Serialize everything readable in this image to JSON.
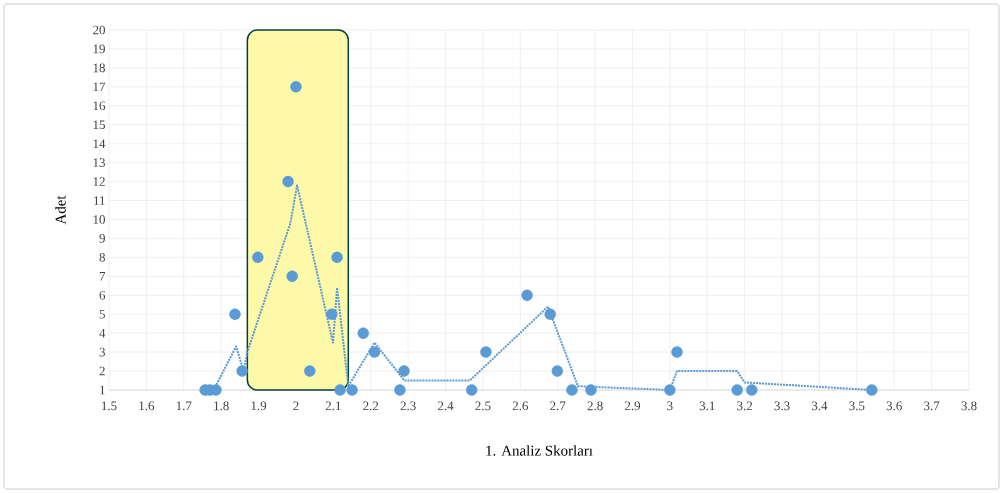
{
  "chart_data": {
    "type": "scatter",
    "xlabel": "1. Analiz Skorları",
    "ylabel": "Adet",
    "xlim": [
      1.5,
      3.8
    ],
    "xticks": [
      1.5,
      1.6,
      1.7,
      1.8,
      1.9,
      2,
      2.1,
      2.2,
      2.3,
      2.4,
      2.5,
      2.6,
      2.7,
      2.8,
      2.9,
      3,
      3.1,
      3.2,
      3.3,
      3.4,
      3.5,
      3.6,
      3.7,
      3.8
    ],
    "ylim": [
      1,
      20
    ],
    "yticks": [
      1,
      2,
      3,
      4,
      5,
      6,
      7,
      8,
      9,
      10,
      11,
      12,
      13,
      14,
      15,
      16,
      17,
      18,
      19,
      20
    ],
    "grid": true,
    "marker": "circle",
    "bands": [
      {
        "axis": "x",
        "from": 1.87,
        "to": 2.14,
        "color": "#fdf9a8"
      }
    ],
    "series": [
      {
        "color": "#5b9bd5",
        "x": [
          1.757,
          1.77,
          1.786,
          1.837,
          1.856,
          1.898,
          1.979,
          1.99,
          2.0,
          2.037,
          2.096,
          2.11,
          2.118,
          2.15,
          2.18,
          2.21,
          2.278,
          2.289,
          2.47,
          2.508,
          2.618,
          2.68,
          2.699,
          2.738,
          2.789,
          3.0,
          3.019,
          3.18,
          3.219,
          3.54
        ],
        "values": [
          1,
          1,
          1,
          5,
          2,
          8,
          12,
          7,
          17,
          2,
          5,
          8,
          1,
          1,
          4,
          3,
          1,
          2,
          1,
          3,
          6,
          5,
          2,
          1,
          1,
          1,
          3,
          1,
          1,
          1
        ]
      },
      {
        "type": "line",
        "color": "#5b9bd5",
        "line_style": "dotted",
        "marker": "none",
        "x": [
          1.78,
          1.84,
          1.86,
          1.87,
          1.985,
          2.003,
          2.099,
          2.11,
          2.14,
          2.21,
          2.29,
          2.465,
          2.674,
          2.754,
          3.0,
          3.019,
          3.18,
          3.2,
          3.54
        ],
        "values": [
          1,
          3.3,
          2,
          3,
          9.8,
          11.8,
          3.5,
          6.4,
          1.2,
          3.5,
          1.5,
          1.5,
          5.4,
          1.2,
          1,
          2,
          2,
          1.4,
          1
        ]
      }
    ]
  }
}
